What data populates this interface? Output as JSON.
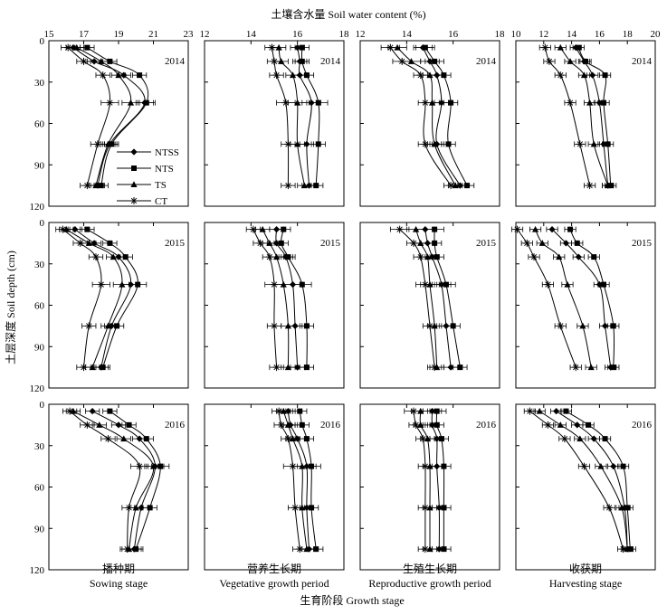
{
  "figure": {
    "top_label": "土壤含水量  Soil water content (%)",
    "y_label": "土层深度  Soil depth (cm)",
    "bottom_label": "生育阶段  Growth stage",
    "legend": [
      {
        "name": "NTSS",
        "marker": "diamond"
      },
      {
        "name": "NTS",
        "marker": "square"
      },
      {
        "name": "TS",
        "marker": "triangle"
      },
      {
        "name": "CT",
        "marker": "star"
      }
    ]
  },
  "columns": [
    {
      "stage_cn": "播种期",
      "stage_en": "Sowing stage",
      "xlim": [
        15,
        23
      ],
      "xticks": [
        "15",
        "17",
        "19",
        "21",
        "23"
      ]
    },
    {
      "stage_cn": "营养生长期",
      "stage_en": "Vegetative growth period",
      "xlim": [
        12,
        18
      ],
      "xticks": [
        "12",
        "14",
        "16",
        "18"
      ]
    },
    {
      "stage_cn": "生殖生长期",
      "stage_en": "Reproductive growth period",
      "xlim": [
        12,
        18
      ],
      "xticks": [
        "12",
        "14",
        "16",
        "18"
      ]
    },
    {
      "stage_cn": "收获期",
      "stage_en": "Harvesting stage",
      "xlim": [
        10,
        20
      ],
      "xticks": [
        "10",
        "12",
        "14",
        "16",
        "18",
        "20"
      ]
    }
  ],
  "rows": [
    {
      "year": "2014"
    },
    {
      "year": "2015"
    },
    {
      "year": "2016"
    }
  ],
  "axis": {
    "ylim": [
      0,
      120
    ],
    "yticks": [
      "0",
      "30",
      "60",
      "90",
      "120"
    ]
  },
  "chart_data": {
    "type": "line",
    "depths": [
      5,
      15,
      25,
      45,
      75,
      105
    ],
    "xlabel": "Soil water content (%)",
    "ylabel": "Soil depth (cm)",
    "series_names": [
      "NTSS",
      "NTS",
      "TS",
      "CT"
    ],
    "panels": [
      {
        "row": 0,
        "col": 0,
        "year": "2014",
        "stage": "Sowing stage",
        "values": {
          "NTSS": [
            16.4,
            17.6,
            19.3,
            20.5,
            18.5,
            17.8
          ],
          "NTS": [
            17.2,
            18.5,
            20.2,
            20.6,
            18.6,
            18.0
          ],
          "TS": [
            16.6,
            18.0,
            19.0,
            19.7,
            18.4,
            17.7
          ],
          "CT": [
            16.1,
            17.0,
            18.1,
            18.5,
            17.8,
            17.2
          ]
        },
        "errors": [
          0.4,
          0.4,
          0.4,
          0.5,
          0.4,
          0.4
        ]
      },
      {
        "row": 0,
        "col": 1,
        "year": "2014",
        "stage": "Vegetative growth period",
        "values": {
          "NTSS": [
            16.0,
            16.1,
            16.1,
            16.6,
            16.4,
            16.5
          ],
          "NTS": [
            16.2,
            16.2,
            16.4,
            16.9,
            16.9,
            16.8
          ],
          "TS": [
            15.2,
            15.3,
            15.8,
            16.0,
            16.0,
            16.3
          ],
          "CT": [
            14.9,
            15.0,
            15.1,
            15.5,
            15.6,
            15.6
          ]
        },
        "errors": [
          0.3,
          0.3,
          0.3,
          0.4,
          0.3,
          0.3
        ]
      },
      {
        "row": 0,
        "col": 2,
        "year": "2014",
        "stage": "Reproductive growth period",
        "values": {
          "NTSS": [
            14.7,
            15.0,
            15.3,
            15.5,
            15.3,
            16.3
          ],
          "NTS": [
            14.8,
            15.2,
            15.6,
            15.9,
            15.8,
            16.6
          ],
          "TS": [
            13.6,
            14.2,
            15.0,
            15.1,
            15.2,
            16.1
          ],
          "CT": [
            13.3,
            13.8,
            14.6,
            14.8,
            14.8,
            15.9
          ]
        },
        "errors": [
          0.4,
          0.4,
          0.3,
          0.3,
          0.3,
          0.3
        ]
      },
      {
        "row": 0,
        "col": 3,
        "year": "2014",
        "stage": "Harvesting stage",
        "values": {
          "NTSS": [
            14.3,
            14.9,
            15.5,
            16.0,
            16.3,
            16.6
          ],
          "NTS": [
            14.5,
            15.0,
            16.4,
            16.3,
            16.6,
            16.8
          ],
          "TS": [
            13.2,
            13.9,
            14.9,
            15.3,
            15.6,
            16.6
          ],
          "CT": [
            12.1,
            12.4,
            13.2,
            13.9,
            14.6,
            15.3
          ]
        },
        "errors": [
          0.4,
          0.4,
          0.4,
          0.4,
          0.4,
          0.4
        ]
      },
      {
        "row": 1,
        "col": 0,
        "year": "2015",
        "stage": "Sowing stage",
        "values": {
          "NTSS": [
            16.5,
            17.6,
            19.0,
            19.7,
            18.6,
            18.0
          ],
          "NTS": [
            17.2,
            18.5,
            19.4,
            20.1,
            18.9,
            18.1
          ],
          "TS": [
            16.0,
            17.3,
            18.7,
            19.2,
            18.4,
            17.5
          ],
          "CT": [
            15.8,
            16.8,
            17.7,
            18.0,
            17.3,
            17.0
          ]
        },
        "errors": [
          0.4,
          0.4,
          0.4,
          0.5,
          0.4,
          0.4
        ]
      },
      {
        "row": 1,
        "col": 1,
        "year": "2015",
        "stage": "Vegetative growth period",
        "values": {
          "NTSS": [
            15.1,
            15.1,
            15.5,
            15.8,
            15.9,
            16.0
          ],
          "NTS": [
            15.4,
            15.3,
            15.6,
            16.2,
            16.4,
            16.4
          ],
          "TS": [
            14.5,
            14.8,
            15.1,
            15.4,
            15.6,
            15.6
          ],
          "CT": [
            14.1,
            14.4,
            14.8,
            15.0,
            15.0,
            15.1
          ]
        },
        "errors": [
          0.3,
          0.3,
          0.3,
          0.4,
          0.3,
          0.3
        ]
      },
      {
        "row": 1,
        "col": 2,
        "year": "2015",
        "stage": "Reproductive growth period",
        "values": {
          "NTSS": [
            14.8,
            14.9,
            15.1,
            15.5,
            15.7,
            15.9
          ],
          "NTS": [
            15.2,
            15.2,
            15.3,
            15.7,
            16.0,
            16.3
          ],
          "TS": [
            14.4,
            14.6,
            14.9,
            15.0,
            15.2,
            15.3
          ],
          "CT": [
            13.7,
            14.3,
            14.6,
            14.8,
            15.0,
            15.2
          ]
        },
        "errors": [
          0.4,
          0.3,
          0.3,
          0.4,
          0.3,
          0.3
        ]
      },
      {
        "row": 1,
        "col": 3,
        "year": "2015",
        "stage": "Harvesting stage",
        "values": {
          "NTSS": [
            12.6,
            13.6,
            14.5,
            16.0,
            16.4,
            16.8
          ],
          "NTS": [
            13.9,
            14.4,
            15.6,
            16.3,
            17.0,
            17.0
          ],
          "TS": [
            11.4,
            11.9,
            13.1,
            13.7,
            14.8,
            15.4
          ],
          "CT": [
            10.1,
            10.8,
            11.3,
            12.3,
            13.2,
            14.3
          ]
        },
        "errors": [
          0.4,
          0.4,
          0.4,
          0.4,
          0.4,
          0.4
        ]
      },
      {
        "row": 2,
        "col": 0,
        "year": "2016",
        "stage": "Sowing stage",
        "values": {
          "NTSS": [
            17.5,
            19.0,
            20.2,
            21.1,
            20.3,
            19.9
          ],
          "NTS": [
            18.5,
            19.6,
            20.6,
            21.4,
            20.8,
            20.0
          ],
          "TS": [
            16.4,
            17.9,
            19.3,
            21.0,
            20.0,
            19.6
          ],
          "CT": [
            16.2,
            17.2,
            18.4,
            20.2,
            19.6,
            19.5
          ]
        },
        "errors": [
          0.4,
          0.4,
          0.4,
          0.5,
          0.4,
          0.4
        ]
      },
      {
        "row": 2,
        "col": 1,
        "year": "2016",
        "stage": "Vegetative growth period",
        "values": {
          "NTSS": [
            15.6,
            15.7,
            16.0,
            16.4,
            16.4,
            16.5
          ],
          "NTS": [
            16.1,
            16.2,
            16.4,
            16.6,
            16.6,
            16.8
          ],
          "TS": [
            15.4,
            15.6,
            15.8,
            16.2,
            16.2,
            16.4
          ],
          "CT": [
            15.2,
            15.3,
            15.6,
            15.8,
            15.9,
            16.1
          ]
        },
        "errors": [
          0.3,
          0.3,
          0.3,
          0.4,
          0.3,
          0.3
        ]
      },
      {
        "row": 2,
        "col": 2,
        "year": "2016",
        "stage": "Reproductive growth period",
        "values": {
          "NTSS": [
            15.1,
            15.1,
            15.3,
            15.3,
            15.4,
            15.4
          ],
          "NTS": [
            15.3,
            15.3,
            15.5,
            15.6,
            15.6,
            15.6
          ],
          "TS": [
            14.6,
            14.6,
            14.9,
            15.0,
            15.0,
            15.0
          ],
          "CT": [
            14.3,
            14.4,
            14.7,
            14.8,
            14.8,
            14.8
          ]
        },
        "errors": [
          0.4,
          0.3,
          0.3,
          0.3,
          0.3,
          0.3
        ]
      },
      {
        "row": 2,
        "col": 3,
        "year": "2016",
        "stage": "Harvesting stage",
        "values": {
          "NTSS": [
            12.9,
            14.4,
            15.6,
            17.0,
            17.8,
            18.0
          ],
          "NTS": [
            13.6,
            15.2,
            16.4,
            17.7,
            18.0,
            18.2
          ],
          "TS": [
            11.7,
            13.2,
            14.6,
            16.1,
            17.6,
            18.0
          ],
          "CT": [
            11.0,
            12.3,
            13.5,
            14.9,
            16.7,
            17.7
          ]
        },
        "errors": [
          0.4,
          0.4,
          0.4,
          0.4,
          0.4,
          0.4
        ]
      }
    ]
  }
}
